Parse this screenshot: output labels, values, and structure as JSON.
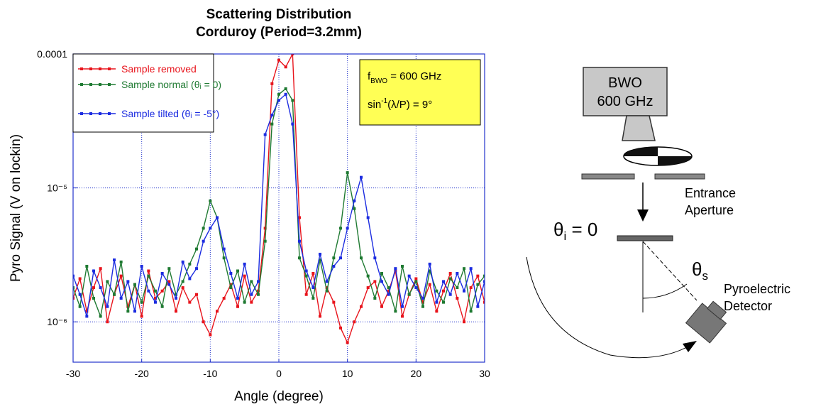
{
  "chart_data": {
    "type": "line",
    "title": [
      "Scattering Distribution",
      "Corduroy (Period=3.2mm)"
    ],
    "x_label": "Angle (degree)",
    "y_label": "Pyro Signal (V on lockin)",
    "log_y": true,
    "grid": true,
    "legend_position": "upper left",
    "xlim": [
      -30,
      30
    ],
    "xticks": [
      -30,
      -20,
      -10,
      0,
      10,
      20,
      30
    ],
    "ylim": [
      5e-07,
      0.0001
    ],
    "yticks": [
      {
        "value": 1e-06,
        "label": "10⁻⁶"
      },
      {
        "value": 1e-05,
        "label": "10⁻⁵"
      },
      0.0001
    ],
    "x": [
      -30,
      -29,
      -28,
      -27,
      -26,
      -25,
      -24,
      -23,
      -22,
      -21,
      -20,
      -19,
      -18,
      -17,
      -16,
      -15,
      -14,
      -13,
      -12,
      -11,
      -10,
      -9,
      -8,
      -7,
      -6,
      -5,
      -4,
      -3,
      -2,
      -1,
      0,
      1,
      2,
      3,
      4,
      5,
      6,
      7,
      8,
      9,
      10,
      11,
      12,
      13,
      14,
      15,
      16,
      17,
      18,
      19,
      20,
      21,
      22,
      23,
      24,
      25,
      26,
      27,
      28,
      29,
      30
    ],
    "series": [
      {
        "name": "Sample removed",
        "color": "#e8141c",
        "values": [
          1.5e-06,
          2.1e-06,
          1.2e-06,
          1.8e-06,
          2.5e-06,
          1e-06,
          1.6e-06,
          2.2e-06,
          1.3e-06,
          1.9e-06,
          1.1e-06,
          2.4e-06,
          1.5e-06,
          1.7e-06,
          2e-06,
          1.2e-06,
          1.8e-06,
          1.4e-06,
          1.6e-06,
          1e-06,
          8e-07,
          1.2e-06,
          1.5e-06,
          1.9e-06,
          1.3e-06,
          2.2e-06,
          1.4e-06,
          1.7e-06,
          5e-06,
          6e-05,
          9e-05,
          8e-05,
          0.0001,
          6e-06,
          1.6e-06,
          2.3e-06,
          1.1e-06,
          1.8e-06,
          1.4e-06,
          9e-07,
          7e-07,
          1e-06,
          1.3e-06,
          1.8e-06,
          2e-06,
          1.3e-06,
          1.7e-06,
          2.4e-06,
          1.1e-06,
          1.6e-06,
          2.1e-06,
          1.4e-06,
          1.9e-06,
          1.2e-06,
          1.7e-06,
          2.3e-06,
          1.5e-06,
          1e-06,
          1.8e-06,
          2.2e-06,
          1.4e-06
        ]
      },
      {
        "name": "Sample normal (θᵢ = 0)",
        "color": "#1f7a32",
        "values": [
          1.8e-06,
          1.3e-06,
          2.6e-06,
          1.5e-06,
          1.1e-06,
          2e-06,
          1.6e-06,
          2.8e-06,
          1.2e-06,
          1.9e-06,
          1.4e-06,
          2.2e-06,
          1.7e-06,
          1.3e-06,
          2.5e-06,
          1.6e-06,
          2e-06,
          2.7e-06,
          3.5e-06,
          5e-06,
          8e-06,
          6e-06,
          3e-06,
          1.8e-06,
          2.4e-06,
          1.4e-06,
          2e-06,
          1.6e-06,
          4e-06,
          3e-05,
          5e-05,
          5.5e-05,
          4.5e-05,
          3e-06,
          2.2e-06,
          1.5e-06,
          2.9e-06,
          1.7e-06,
          3e-06,
          5e-06,
          1.3e-05,
          7e-06,
          3e-06,
          2.2e-06,
          1.5e-06,
          2.3e-06,
          1.8e-06,
          1.2e-06,
          2.6e-06,
          1.6e-06,
          2e-06,
          1.3e-06,
          2.4e-06,
          1.7e-06,
          1.4e-06,
          2.1e-06,
          1.8e-06,
          2.5e-06,
          1.2e-06,
          1.9e-06,
          2.2e-06
        ]
      },
      {
        "name": "Sample tilted (θᵢ = -5°)",
        "color": "#1c2ce0",
        "values": [
          2.2e-06,
          1.6e-06,
          1.1e-06,
          2.4e-06,
          1.8e-06,
          1.3e-06,
          2.9e-06,
          1.5e-06,
          2e-06,
          1.2e-06,
          2.6e-06,
          1.7e-06,
          1.4e-06,
          2.3e-06,
          1.9e-06,
          1.5e-06,
          2.8e-06,
          2.1e-06,
          2.5e-06,
          4e-06,
          5e-06,
          6e-06,
          3.5e-06,
          2.3e-06,
          1.5e-06,
          2.7e-06,
          1.6e-06,
          2e-06,
          2.5e-05,
          3.5e-05,
          4.5e-05,
          5e-05,
          3e-05,
          4e-06,
          2.4e-06,
          1.8e-06,
          3.2e-06,
          2e-06,
          2.6e-06,
          3e-06,
          5e-06,
          8e-06,
          1.2e-05,
          6e-06,
          3e-06,
          2e-06,
          1.6e-06,
          2.5e-06,
          1.3e-06,
          2.2e-06,
          1.8e-06,
          1.5e-06,
          2.7e-06,
          1.4e-06,
          2e-06,
          1.6e-06,
          2.3e-06,
          1.7e-06,
          2.5e-06,
          1.3e-06,
          2e-06
        ]
      }
    ],
    "annotation_box": [
      [
        "f",
        "BWO",
        " = 600 GHz"
      ],
      [
        "sin",
        "-1",
        "(λ/P) = 9°"
      ]
    ]
  },
  "diagram": {
    "source": [
      "BWO",
      "600 GHz"
    ],
    "aperture": [
      "Entrance",
      "Aperture"
    ],
    "incidence": [
      "θ",
      "i",
      " = 0"
    ],
    "scatter_angle": [
      "θ",
      "s"
    ],
    "detector": [
      "Pyroelectric",
      "Detector"
    ]
  }
}
